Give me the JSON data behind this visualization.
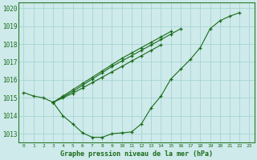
{
  "title": "Graphe pression niveau de la mer (hPa)",
  "bg_color": "#ceeaea",
  "grid_color": "#a8d4d4",
  "line_color": "#1a6b1a",
  "marker": "+",
  "ylim": [
    1012.5,
    1020.3
  ],
  "yticks": [
    1013,
    1014,
    1015,
    1016,
    1017,
    1018,
    1019,
    1020
  ],
  "line_main": [
    1015.3,
    1015.1,
    1015.0,
    1014.75,
    1014.0,
    1013.55,
    1013.05,
    1012.8,
    1012.8,
    1013.0,
    1013.05,
    1013.1,
    1013.55,
    1014.45,
    1015.1,
    1016.05,
    1016.6,
    1017.15,
    1017.8,
    1018.85,
    1019.3,
    1019.55,
    1019.75,
    null
  ],
  "line_fan1": [
    null,
    null,
    null,
    1014.75,
    1015.05,
    1015.35,
    1015.7,
    1016.05,
    1016.4,
    1016.75,
    1017.05,
    1017.35,
    1017.65,
    1017.95,
    1018.25,
    1018.55,
    1018.85,
    null,
    null,
    null,
    null,
    null,
    null,
    null
  ],
  "line_fan2": [
    null,
    null,
    null,
    1014.75,
    1015.1,
    1015.45,
    1015.8,
    1016.15,
    1016.5,
    1016.85,
    1017.2,
    1017.5,
    1017.8,
    1018.1,
    1018.4,
    1018.7,
    null,
    null,
    null,
    null,
    null,
    null,
    null,
    null
  ],
  "line_fan3": [
    null,
    null,
    null,
    1014.75,
    1015.0,
    1015.25,
    1015.55,
    1015.85,
    1016.15,
    1016.45,
    1016.75,
    1017.05,
    1017.35,
    1017.65,
    1017.95,
    null,
    null,
    null,
    null,
    null,
    null,
    null,
    null,
    null
  ]
}
